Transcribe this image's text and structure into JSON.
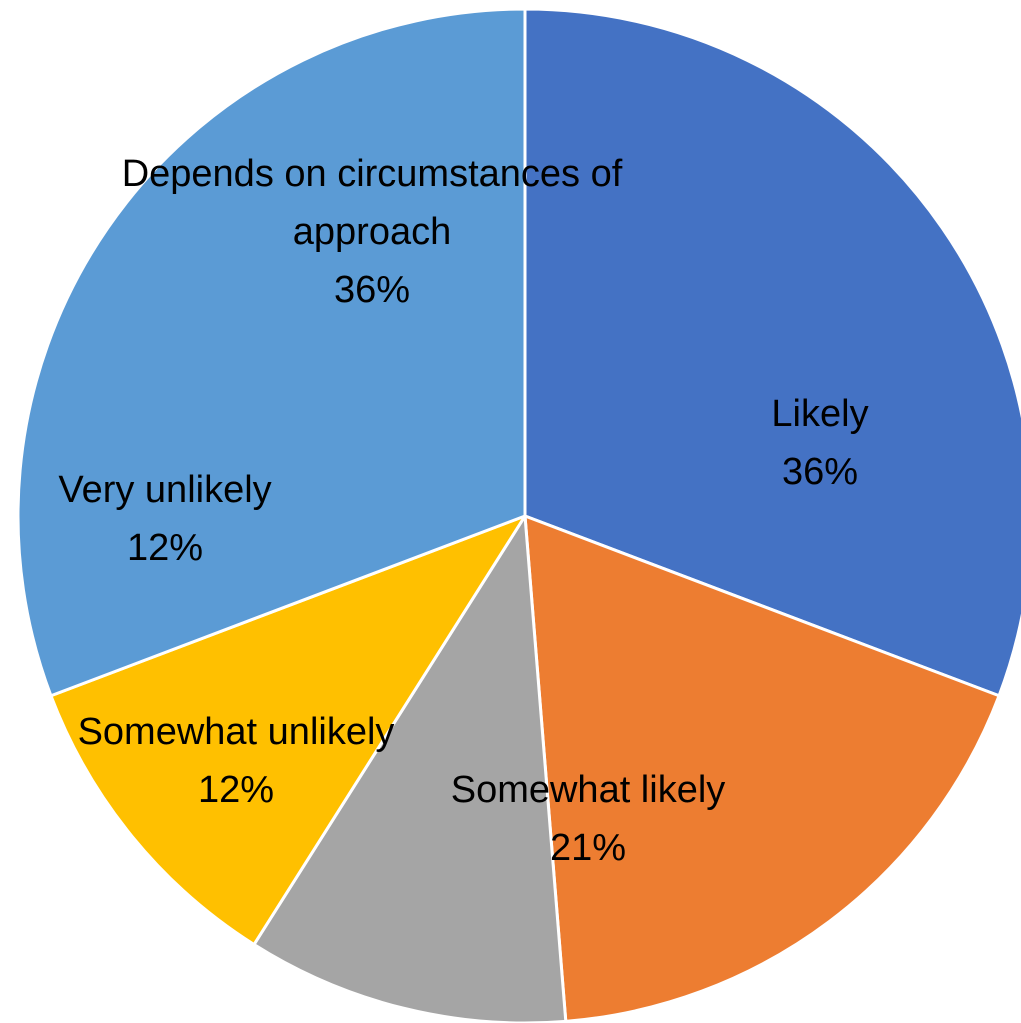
{
  "chart_data": {
    "type": "pie",
    "start_angle_deg": 0,
    "direction": "clockwise",
    "slices": [
      {
        "label_lines": [
          "Likely"
        ],
        "value": 36,
        "value_label": "36%",
        "color": "#4472C4"
      },
      {
        "label_lines": [
          "Somewhat likely"
        ],
        "value": 21,
        "value_label": "21%",
        "color": "#ED7D31"
      },
      {
        "label_lines": [
          "Somewhat unlikely"
        ],
        "value": 12,
        "value_label": "12%",
        "color": "#A5A5A5"
      },
      {
        "label_lines": [
          "Very unlikely"
        ],
        "value": 12,
        "value_label": "12%",
        "color": "#FFC000"
      },
      {
        "label_lines": [
          "Depends on circumstances of",
          "approach"
        ],
        "value": 36,
        "value_label": "36%",
        "color": "#5B9BD5"
      }
    ]
  }
}
